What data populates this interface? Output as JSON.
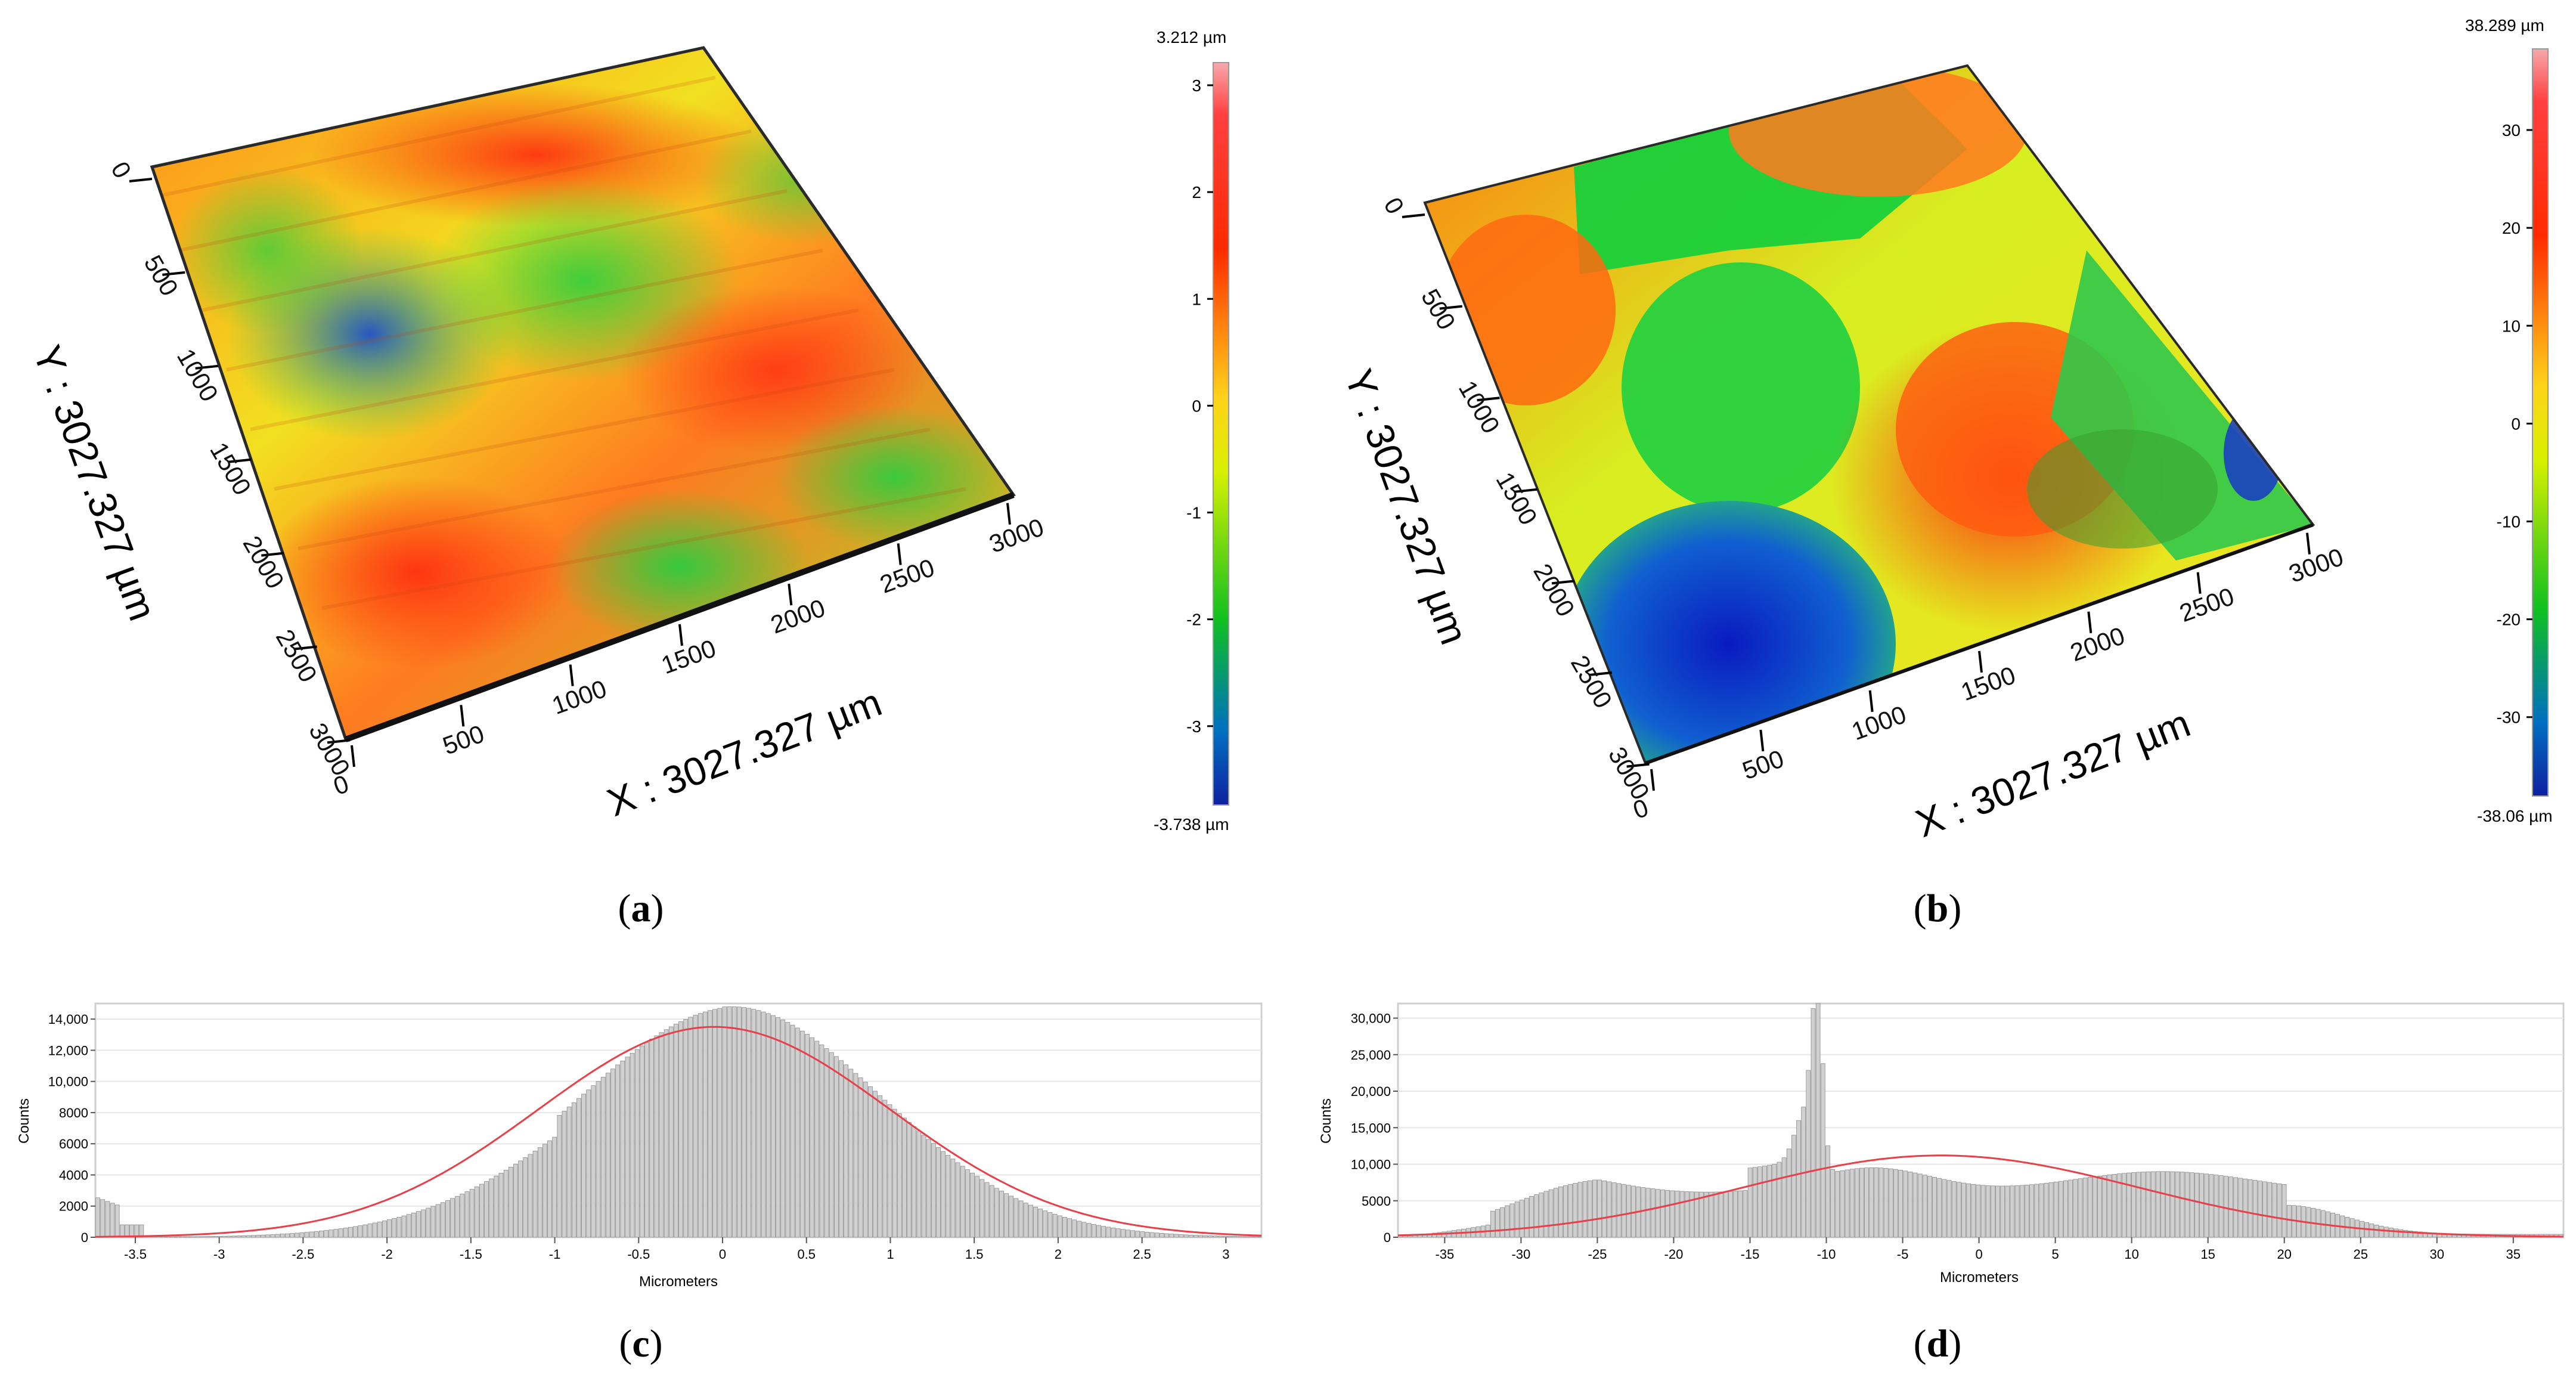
{
  "chart_data": [
    {
      "id": "a",
      "type": "surface3d",
      "caption": "a",
      "x_axis_label": "X : 3027.327 µm",
      "y_axis_label": "Y : 3027.327 µm",
      "x_ticks": [
        "0",
        "500",
        "1000",
        "1500",
        "2000",
        "2500",
        "3000"
      ],
      "y_ticks": [
        "0",
        "500",
        "1000",
        "1500",
        "2000",
        "2500",
        "3000"
      ],
      "x_range": [
        0,
        3027.327
      ],
      "y_range": [
        0,
        3027.327
      ],
      "colorbar": {
        "max_label": "3.212 µm",
        "min_label": "-3.738 µm",
        "range": [
          -3.738,
          3.212
        ],
        "ticks": [
          "3",
          "2",
          "1",
          "0",
          "-1",
          "-2",
          "-3"
        ]
      }
    },
    {
      "id": "b",
      "type": "surface3d",
      "caption": "b",
      "x_axis_label": "X : 3027.327 µm",
      "y_axis_label": "Y : 3027.327 µm",
      "x_ticks": [
        "0",
        "500",
        "1000",
        "1500",
        "2000",
        "2500",
        "3000"
      ],
      "y_ticks": [
        "0",
        "500",
        "1000",
        "1500",
        "2000",
        "2500",
        "3000"
      ],
      "x_range": [
        0,
        3027.327
      ],
      "y_range": [
        0,
        3027.327
      ],
      "colorbar": {
        "max_label": "38.289 µm",
        "min_label": "-38.06 µm",
        "range": [
          -38.06,
          38.289
        ],
        "ticks": [
          "30",
          "20",
          "10",
          "0",
          "-10",
          "-20",
          "-30"
        ]
      }
    },
    {
      "id": "c",
      "type": "bar",
      "caption": "c",
      "xlabel": "Micrometers",
      "ylabel": "Counts",
      "xlim": [
        -3.738,
        3.212
      ],
      "ylim": [
        0,
        15000
      ],
      "x_ticks": [
        "-3.5",
        "-3",
        "-2.5",
        "-2",
        "-1.5",
        "-1",
        "-0.5",
        "0",
        "0.5",
        "1",
        "1.5",
        "2",
        "2.5",
        "3"
      ],
      "y_ticks": [
        "0",
        "2000",
        "4000",
        "6000",
        "8000",
        "10,000",
        "12,000",
        "14,000"
      ],
      "histogram": {
        "bins": 240,
        "mean": 0.05,
        "sigma": 0.9,
        "peak": 14800
      },
      "fit_curve": {
        "type": "gaussian",
        "mean": -0.05,
        "sigma": 1.05,
        "peak": 13500,
        "color": "#e8404a"
      }
    },
    {
      "id": "d",
      "type": "bar",
      "caption": "d",
      "xlabel": "Micrometers",
      "ylabel": "Counts",
      "xlim": [
        -38.06,
        38.289
      ],
      "ylim": [
        0,
        32000
      ],
      "x_ticks": [
        "-35",
        "-30",
        "-25",
        "-20",
        "-15",
        "-10",
        "-5",
        "0",
        "5",
        "10",
        "15",
        "20",
        "25",
        "30",
        "35"
      ],
      "y_ticks": [
        "0",
        "5000",
        "10,000",
        "15,000",
        "20,000",
        "25,000",
        "30,000"
      ],
      "histogram": {
        "bins": 240,
        "spike_at": -10.5,
        "spike_peak": 34000
      },
      "fit_curve": {
        "type": "gaussian",
        "mean": -2.5,
        "sigma": 13,
        "peak": 11200,
        "color": "#e8404a"
      }
    }
  ]
}
